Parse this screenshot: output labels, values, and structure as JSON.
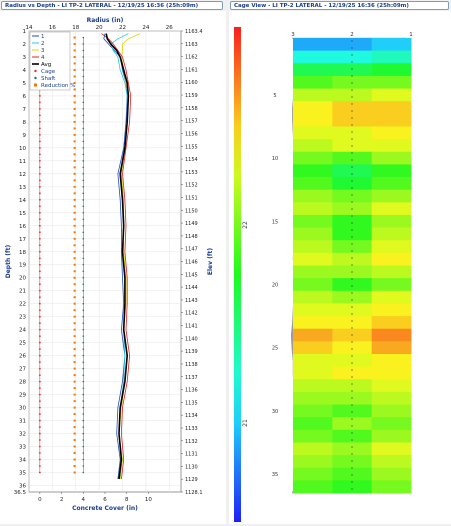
{
  "left_panel": {
    "title": "Radius vs Depth - LI TP-2 LATERAL - 12/19/25 16:36 (25h:09m)"
  },
  "right_panel": {
    "title": "Cage View - LI TP-2 LATERAL - 12/19/25 16:36 (25h:09m)"
  },
  "colors": {
    "line1": "#1f4fbf",
    "line2": "#27c8e8",
    "line3": "#d8d800",
    "line4": "#e02020",
    "avg": "#000000",
    "cage": "#e03030",
    "shaft": "#1a7a6a",
    "reduction": "#f07800",
    "axis_label": "#1a3d8f"
  },
  "chart_data": [
    {
      "type": "line",
      "top_axis": {
        "label": "Radius (in)",
        "ticks": [
          "14",
          "16",
          "18",
          "20",
          "22",
          "24",
          "26"
        ],
        "range": [
          14,
          27
        ]
      },
      "bottom_axis": {
        "label": "Concrete Cover (in)",
        "ticks": [
          "0",
          "2",
          "4",
          "6",
          "8",
          "10"
        ],
        "range": [
          -1,
          13
        ]
      },
      "left_axis": {
        "label": "Depth (ft)",
        "range": [
          1,
          36.5
        ],
        "ticks": [
          "1",
          "2",
          "3",
          "4",
          "5",
          "6",
          "7",
          "8",
          "9",
          "10",
          "11",
          "12",
          "13",
          "14",
          "15",
          "16",
          "17",
          "18",
          "19",
          "20",
          "21",
          "22",
          "23",
          "24",
          "25",
          "26",
          "27",
          "28",
          "29",
          "30",
          "31",
          "32",
          "33",
          "34",
          "35",
          "36"
        ],
        "end_label": "36.5"
      },
      "right_axis": {
        "label": "Elev (ft)",
        "ticks": [
          "1163.4",
          "1163",
          "1162",
          "1161",
          "1160",
          "1159",
          "1158",
          "1157",
          "1156",
          "1155",
          "1154",
          "1153",
          "1152",
          "1151",
          "1150",
          "1149",
          "1148",
          "1147",
          "1146",
          "1145",
          "1144",
          "1143",
          "1142",
          "1141",
          "1140",
          "1139",
          "1138",
          "1137",
          "1136",
          "1135",
          "1134",
          "1133",
          "1132",
          "1131",
          "1130",
          "1129",
          "1128.1"
        ]
      },
      "legend": {
        "placement": "top-left",
        "entries": [
          "1",
          "2",
          "3",
          "4",
          "Avg",
          "Cage",
          "Shaft",
          "Reduction %"
        ]
      },
      "depth": [
        1.2,
        1.6,
        2,
        2.5,
        3,
        4,
        5,
        6,
        8,
        10,
        12,
        14,
        16,
        18,
        20,
        22,
        24,
        26,
        28,
        30,
        32,
        34,
        35.5
      ],
      "series": [
        {
          "name": "1",
          "values": [
            20.5,
            20.4,
            20.8,
            21.3,
            21.8,
            22.0,
            22.3,
            22.4,
            22.3,
            22.1,
            21.6,
            21.8,
            21.9,
            21.9,
            22.0,
            22.1,
            21.9,
            22.2,
            22.0,
            21.6,
            21.5,
            21.8,
            21.6
          ]
        },
        {
          "name": "2",
          "values": [
            22.5,
            21.6,
            21.0,
            21.2,
            21.6,
            21.8,
            22.2,
            22.4,
            22.4,
            22.2,
            21.9,
            22.0,
            22.1,
            22.0,
            22.2,
            22.2,
            22.1,
            22.2,
            22.1,
            21.8,
            21.7,
            21.9,
            21.8
          ]
        },
        {
          "name": "3",
          "values": [
            23.5,
            22.5,
            22.0,
            22.0,
            21.9,
            22.1,
            22.3,
            22.5,
            22.4,
            22.2,
            21.9,
            22.1,
            22.1,
            22.1,
            22.3,
            22.3,
            22.1,
            22.4,
            22.2,
            21.9,
            21.7,
            22.0,
            21.8
          ]
        },
        {
          "name": "4",
          "values": [
            20.2,
            20.8,
            21.2,
            21.6,
            22.0,
            22.3,
            22.5,
            22.7,
            22.6,
            22.3,
            22.0,
            22.2,
            22.3,
            22.2,
            22.4,
            22.4,
            22.3,
            22.6,
            22.4,
            22.0,
            21.9,
            22.1,
            21.9
          ]
        },
        {
          "name": "Avg",
          "values": [
            20.6,
            20.7,
            21.0,
            21.5,
            21.8,
            22.1,
            22.4,
            22.5,
            22.4,
            22.2,
            21.8,
            22.0,
            22.1,
            22.0,
            22.2,
            22.2,
            22.1,
            22.4,
            22.2,
            21.8,
            21.7,
            21.9,
            21.7
          ]
        }
      ],
      "cage_cover": 0,
      "shaft_cover": 4,
      "reduction_x": 3.2,
      "marker_depths": [
        1.5,
        2,
        2.5,
        3,
        3.5,
        4,
        4.5,
        5,
        5.5,
        6,
        6.5,
        7,
        7.5,
        8,
        8.5,
        9,
        9.5,
        10,
        10.5,
        11,
        11.5,
        12,
        12.5,
        13,
        13.5,
        14,
        14.5,
        15,
        15.5,
        16,
        16.5,
        17,
        17.5,
        18,
        18.5,
        19,
        19.5,
        20,
        20.5,
        21,
        21.5,
        22,
        22.5,
        23,
        23.5,
        24,
        24.5,
        25,
        25.5,
        26,
        26.5,
        27,
        27.5,
        28,
        28.5,
        29,
        29.5,
        30,
        30.5,
        31,
        31.5,
        32,
        32.5,
        33,
        33.5,
        34,
        34.5,
        35
      ]
    },
    {
      "type": "heatmap",
      "column_labels": [
        "3",
        "2",
        "1"
      ],
      "colorbar_ticks": [
        "22",
        "21"
      ],
      "colorbar_range": [
        20.5,
        23
      ],
      "depth_ticks": [
        "5",
        "10",
        "15",
        "20",
        "25",
        "30",
        "35"
      ],
      "depth_range": [
        0.5,
        36.5
      ],
      "depth": [
        1,
        2,
        3,
        4,
        5,
        6,
        7,
        8,
        9,
        10,
        11,
        12,
        13,
        14,
        15,
        16,
        17,
        18,
        19,
        20,
        21,
        22,
        23,
        24,
        25,
        26,
        27,
        28,
        29,
        30,
        31,
        32,
        33,
        34,
        35,
        36
      ],
      "radius_left": [
        20.9,
        21.2,
        21.6,
        21.9,
        22.2,
        22.4,
        22.4,
        22.3,
        22.2,
        22.0,
        21.8,
        21.9,
        22.1,
        22.2,
        22.0,
        22.1,
        22.2,
        22.3,
        22.1,
        22.0,
        22.2,
        22.3,
        22.4,
        22.6,
        22.5,
        22.3,
        22.3,
        22.2,
        22.1,
        22.0,
        21.9,
        22.0,
        22.2,
        22.1,
        22.0,
        21.9
      ],
      "radius_center": [
        20.9,
        21.2,
        21.6,
        22.0,
        22.2,
        22.5,
        22.5,
        22.3,
        22.3,
        21.9,
        21.6,
        21.7,
        22.0,
        22.1,
        21.8,
        21.8,
        22.0,
        22.2,
        22.1,
        21.8,
        22.1,
        22.3,
        22.4,
        22.5,
        22.4,
        22.3,
        22.4,
        22.2,
        22.1,
        21.9,
        22.1,
        21.9,
        22.1,
        22.0,
        21.9,
        21.8
      ],
      "radius_right": [
        21.0,
        21.3,
        21.7,
        22.0,
        22.3,
        22.5,
        22.5,
        22.4,
        22.3,
        22.1,
        21.8,
        21.9,
        22.1,
        22.3,
        22.1,
        22.2,
        22.3,
        22.4,
        22.2,
        22.0,
        22.3,
        22.4,
        22.5,
        22.7,
        22.6,
        22.4,
        22.4,
        22.3,
        22.2,
        22.1,
        22.0,
        22.1,
        22.3,
        22.2,
        22.1,
        22.0
      ]
    }
  ]
}
